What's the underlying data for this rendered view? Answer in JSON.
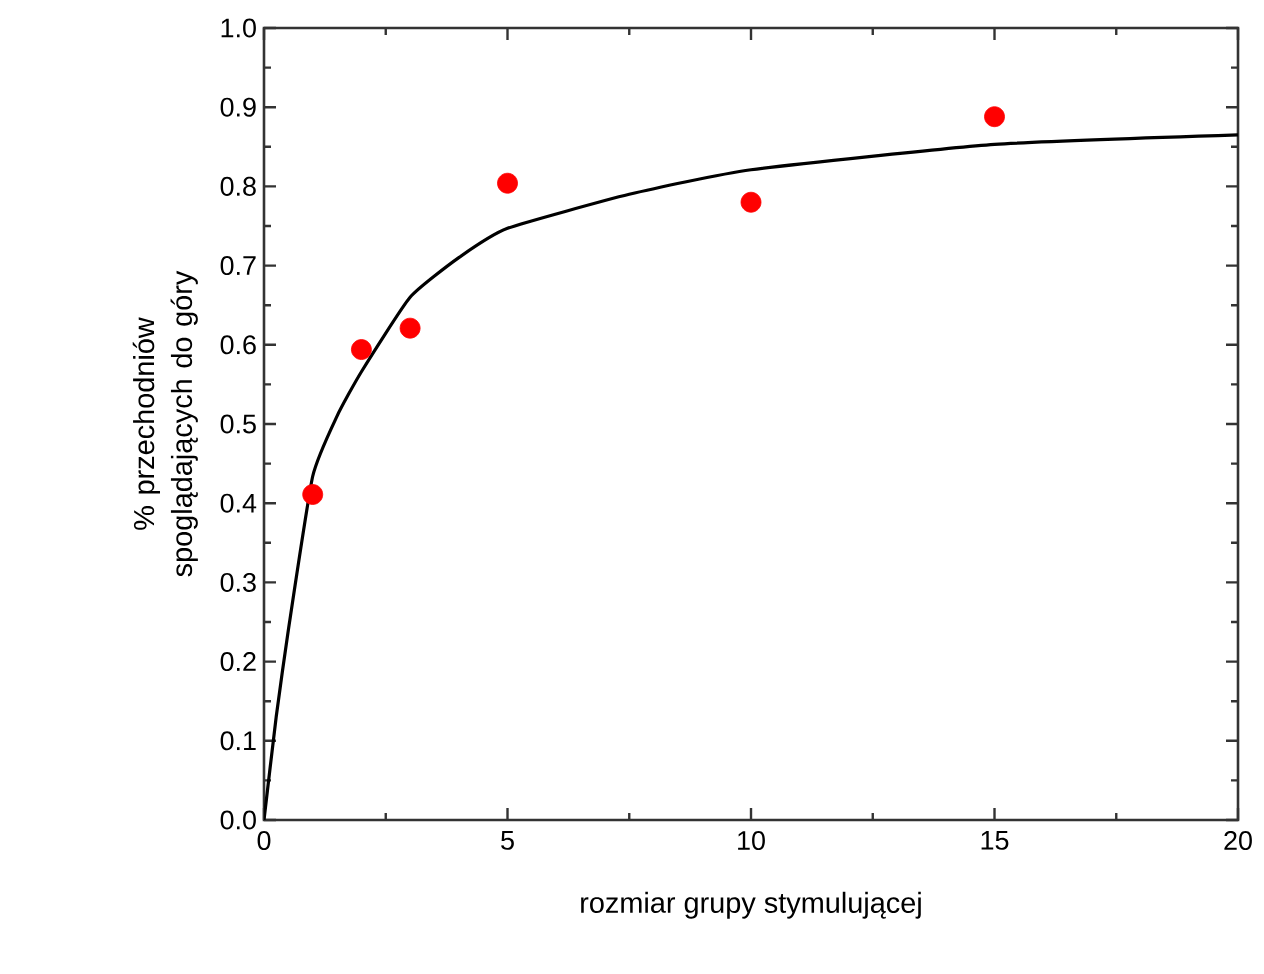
{
  "chart_data": {
    "type": "scatter",
    "xlabel": "rozmiar grupy stymulującej",
    "ylabel": "% przechodniów spoglądających do góry",
    "xlim": [
      0,
      20
    ],
    "xticks": [
      0,
      5,
      10,
      15,
      20
    ],
    "ylim": [
      0.0,
      1.0
    ],
    "yticks": [
      {
        "value": 0.0,
        "label": "0.0"
      },
      0.1,
      0.2,
      0.3,
      0.4,
      0.5,
      0.6,
      0.7,
      0.8,
      0.9,
      {
        "value": 1.0,
        "label": "1.0"
      }
    ],
    "grid": false,
    "series": [
      {
        "type": "line",
        "color": "#000000",
        "marker": "none",
        "line_style": "solid",
        "x": [
          0,
          0.25,
          0.5,
          1,
          1.5,
          2,
          3,
          4,
          5,
          7.5,
          10,
          15,
          20
        ],
        "values": [
          0,
          0.13,
          0.24,
          0.434,
          0.51,
          0.566,
          0.66,
          0.71,
          0.747,
          0.79,
          0.821,
          0.853,
          0.865
        ]
      },
      {
        "color": "#ff0000",
        "marker": "circle",
        "x": [
          1,
          2,
          3,
          5,
          10,
          15
        ],
        "values": [
          0.411,
          0.594,
          0.621,
          0.804,
          0.78,
          0.888
        ]
      }
    ]
  }
}
